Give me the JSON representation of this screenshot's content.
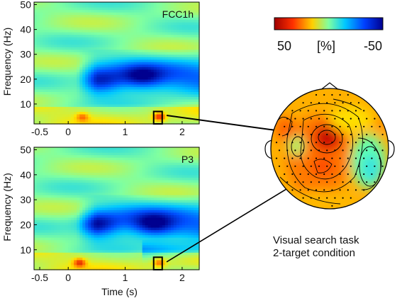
{
  "chart_data": [
    {
      "type": "heatmap",
      "title": "FCC1h",
      "ylabel": "Frequency (Hz)",
      "xlabel": "",
      "xlim": [
        -0.6,
        2.3
      ],
      "ylim": [
        2,
        51
      ],
      "xticks": [
        -0.5,
        0,
        1,
        2
      ],
      "xtick_labels": [
        "-0.5",
        "0",
        "1",
        "2"
      ],
      "yticks": [
        10,
        20,
        30,
        40,
        50
      ],
      "ytick_labels": [
        "10",
        "20",
        "30",
        "40",
        "50"
      ],
      "highlight_box": {
        "t": [
          1.5,
          1.65
        ],
        "f": [
          2,
          7
        ]
      },
      "features": [
        {
          "desc": "theta increase",
          "t": 0.25,
          "f": 5,
          "value": 30
        },
        {
          "desc": "theta increase",
          "t": 1.6,
          "f": 5,
          "value": 50
        },
        {
          "desc": "alpha/beta decrease",
          "t": 0.6,
          "f": 19,
          "value": -30
        },
        {
          "desc": "alpha/beta decrease",
          "t": 1.3,
          "f": 21,
          "value": -40
        }
      ]
    },
    {
      "type": "heatmap",
      "title": "P3",
      "ylabel": "Frequency (Hz)",
      "xlabel": "Time (s)",
      "xlim": [
        -0.6,
        2.3
      ],
      "ylim": [
        2,
        51
      ],
      "xticks": [
        -0.5,
        0,
        1,
        2
      ],
      "xtick_labels": [
        "-0.5",
        "0",
        "1",
        "2"
      ],
      "yticks": [
        10,
        20,
        30,
        40,
        50
      ],
      "ytick_labels": [
        "10",
        "20",
        "30",
        "40",
        "50"
      ],
      "highlight_box": {
        "t": [
          1.5,
          1.65
        ],
        "f": [
          2,
          7
        ]
      },
      "features": [
        {
          "desc": "theta increase",
          "t": 0.2,
          "f": 5,
          "value": 45
        },
        {
          "desc": "theta increase",
          "t": 1.6,
          "f": 5,
          "value": 35
        },
        {
          "desc": "alpha/beta decrease",
          "t": 0.5,
          "f": 20,
          "value": -35
        },
        {
          "desc": "alpha/beta decrease",
          "t": 1.5,
          "f": 20,
          "value": -45
        }
      ]
    },
    {
      "type": "topographic-map",
      "colorbar": {
        "min": -50,
        "max": 50,
        "unit": "[%]",
        "left_label": "50",
        "center_label": "[%]",
        "right_label": "-50"
      }
    }
  ],
  "colormap": [
    "#00008f",
    "#0050ff",
    "#00c8ff",
    "#80ffa0",
    "#ffe600",
    "#ff5000",
    "#a00000"
  ],
  "caption": {
    "line1": "Visual search task",
    "line2": "2-target condition"
  }
}
